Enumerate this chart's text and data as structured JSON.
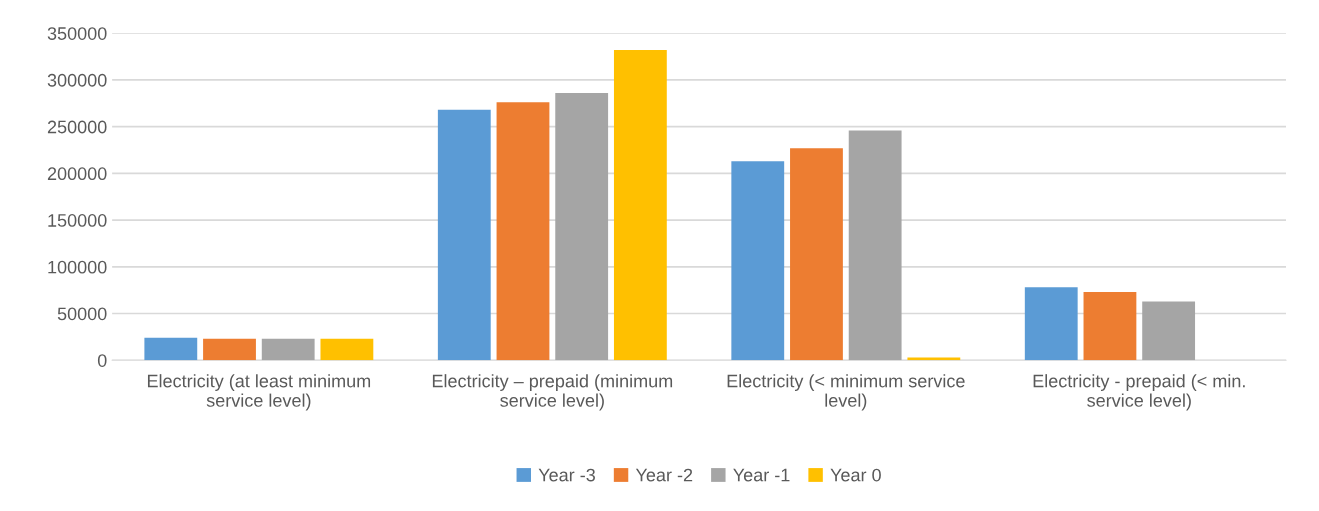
{
  "chart_data": {
    "type": "bar",
    "categories": [
      "Electricity (at least minimum service level)",
      "Electricity – prepaid (minimum service level)",
      "Electricity (< minimum service level)",
      "Electricity - prepaid (< min. service level)"
    ],
    "series": [
      {
        "name": "Year -3",
        "color": "#5b9bd5",
        "values": [
          24000,
          268000,
          213000,
          78000
        ]
      },
      {
        "name": "Year -2",
        "color": "#ed7d31",
        "values": [
          23000,
          276000,
          227000,
          73000
        ]
      },
      {
        "name": "Year -1",
        "color": "#a5a5a5",
        "values": [
          23000,
          286000,
          246000,
          63000
        ]
      },
      {
        "name": "Year 0",
        "color": "#ffc000",
        "values": [
          23000,
          332000,
          3000,
          null
        ]
      }
    ],
    "ylim": [
      0,
      350000
    ],
    "yticks": [
      0,
      50000,
      100000,
      150000,
      200000,
      250000,
      300000,
      350000
    ],
    "grid": "y",
    "legend": "bottom"
  }
}
